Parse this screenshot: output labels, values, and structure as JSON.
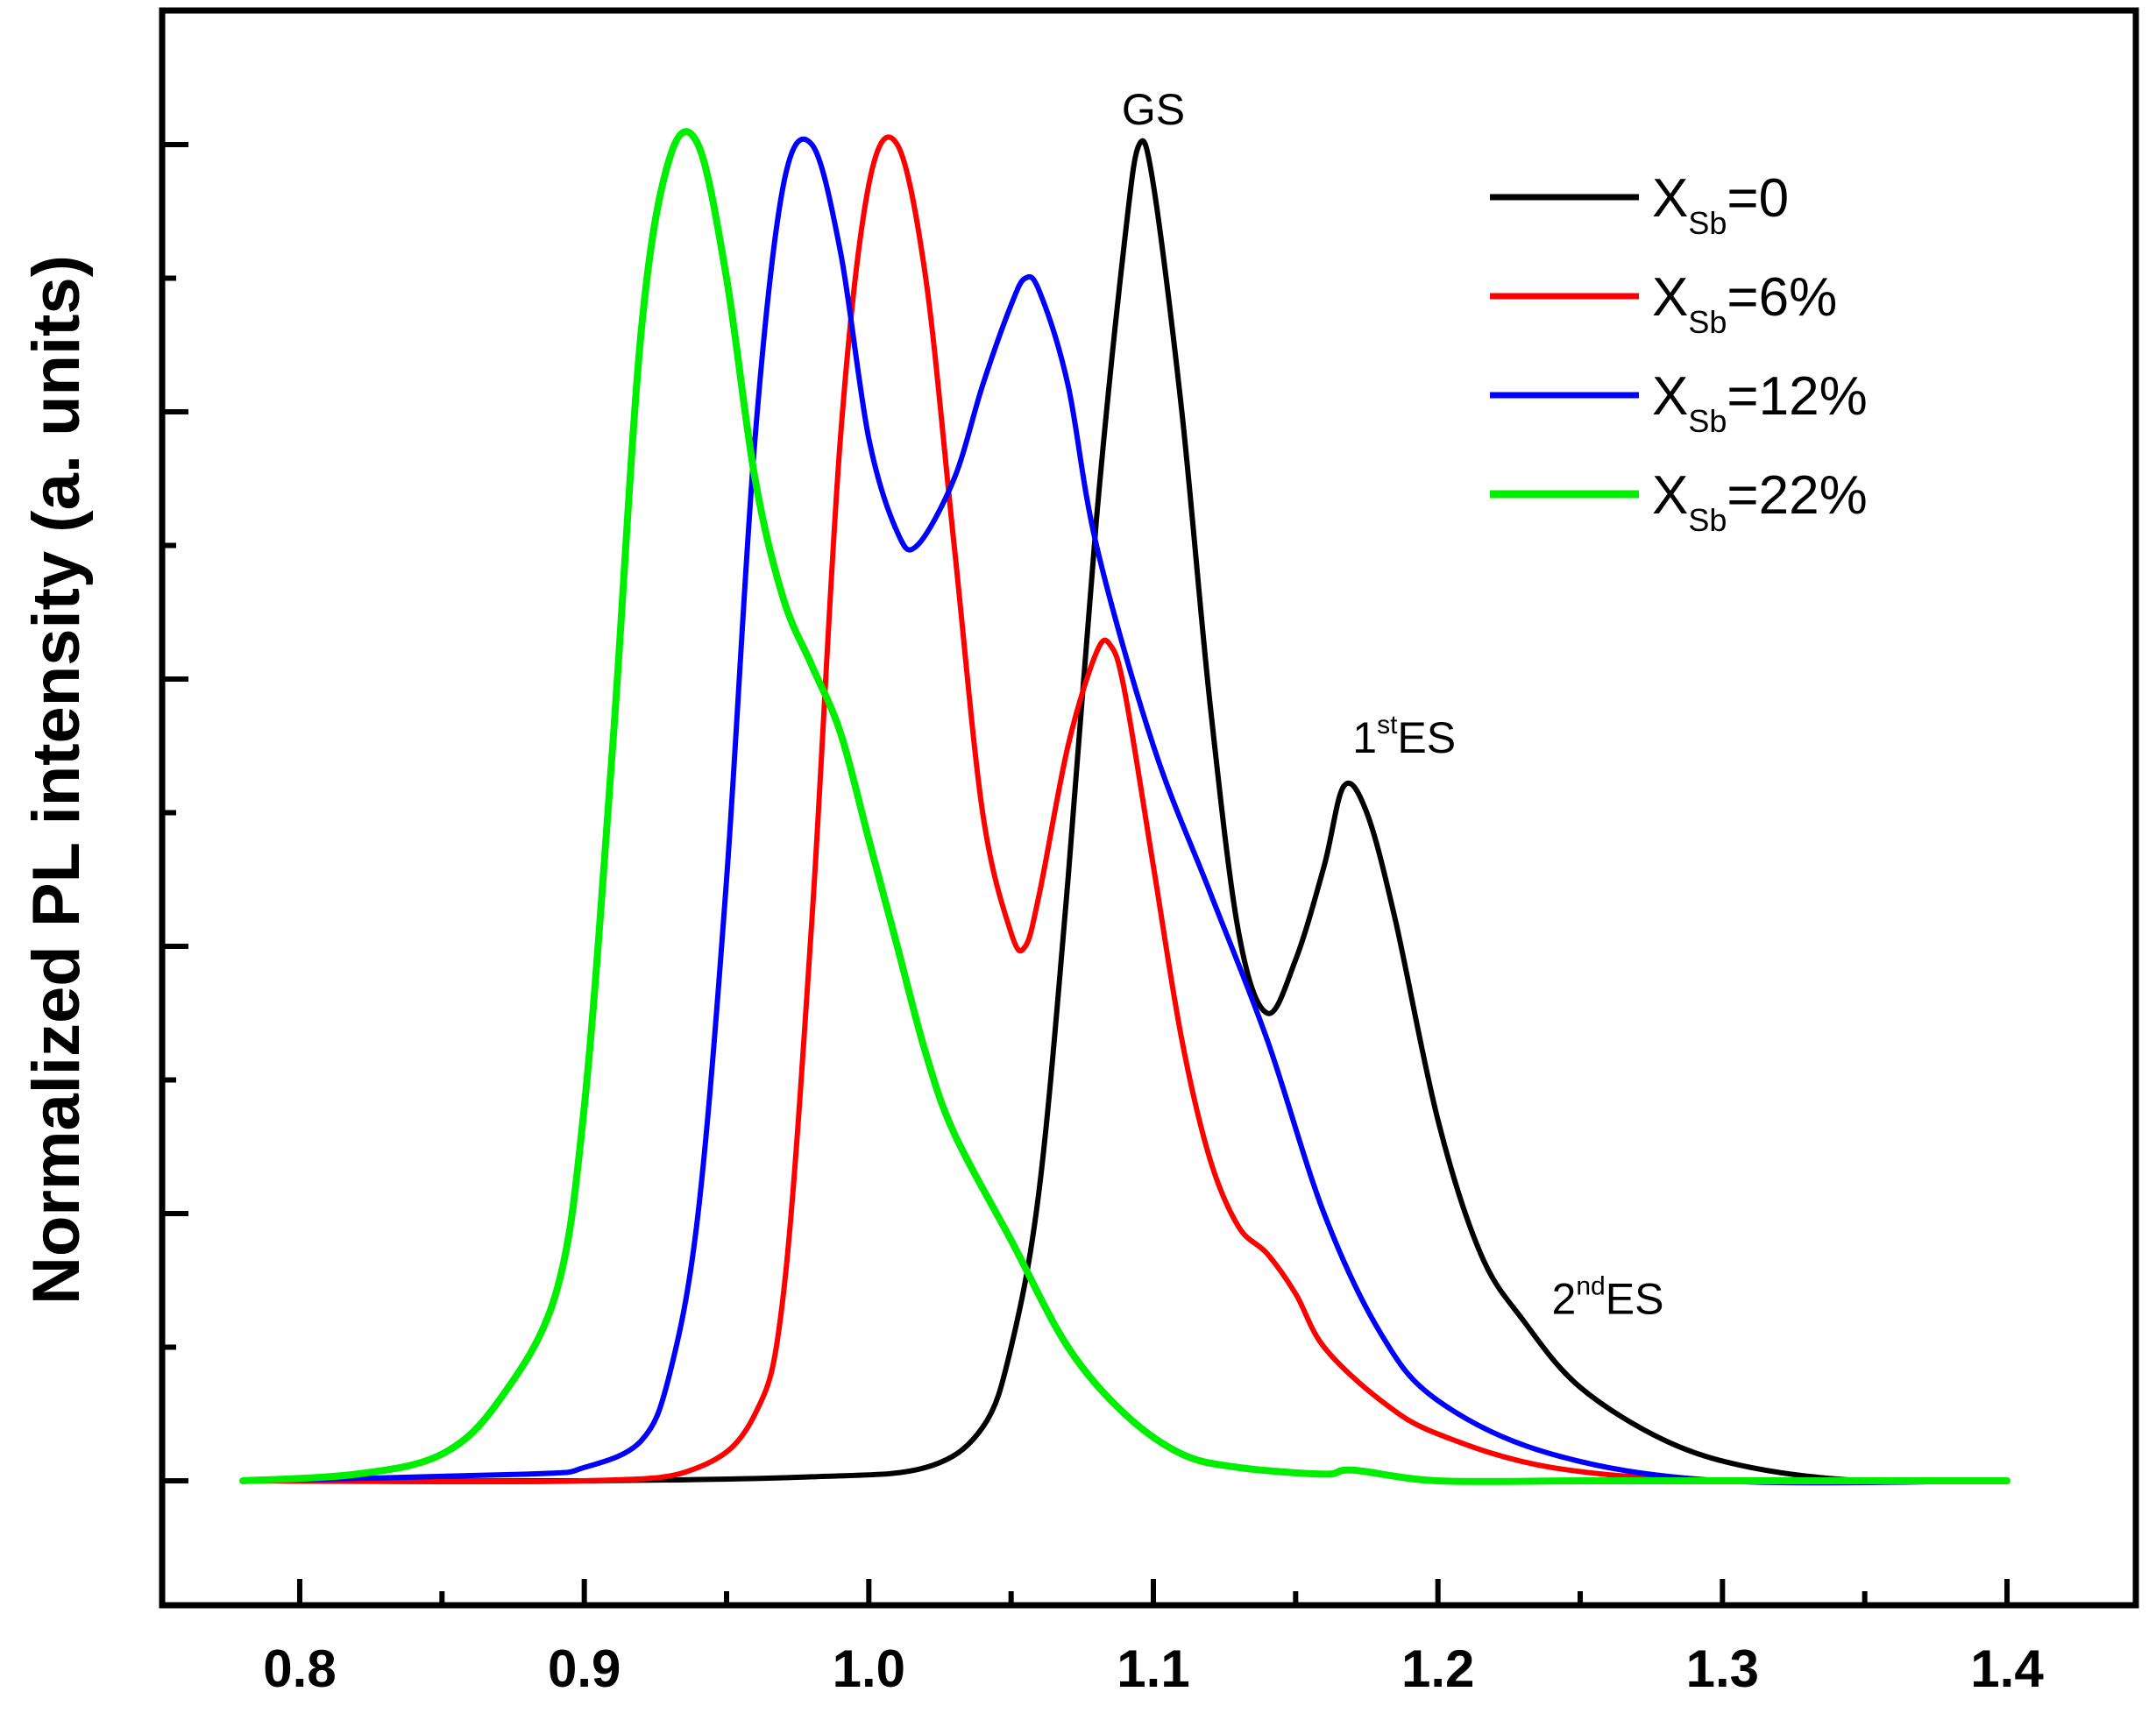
{
  "chart_data": {
    "type": "line",
    "title": "",
    "xlabel": "",
    "ylabel": "Normalized PL intensity (a. units)",
    "xlim": [
      0.75,
      1.45
    ],
    "ylim": [
      -0.05,
      1.1
    ],
    "x_ticks": [
      0.8,
      0.9,
      1.0,
      1.1,
      1.2,
      1.3,
      1.4
    ],
    "x_tick_labels": [
      "0.8",
      "0.9",
      "1.0",
      "1.1",
      "1.2",
      "1.3",
      "1.4"
    ],
    "y_ticks": [
      0.0,
      0.1,
      0.2,
      0.3,
      0.4,
      0.5,
      0.6,
      0.7,
      0.8,
      0.9,
      1.0
    ],
    "y_tick_labels_visible": false,
    "grid": false,
    "legend_position": "top-right",
    "series": [
      {
        "name": "X_Sb=0",
        "legend_main": "X",
        "legend_sub": "Sb",
        "legend_value": "=0",
        "color": "#000000",
        "x": [
          0.78,
          0.9,
          0.98,
          1.02,
          1.04,
          1.05,
          1.06,
          1.07,
          1.08,
          1.09,
          1.095,
          1.1,
          1.11,
          1.12,
          1.13,
          1.14,
          1.15,
          1.16,
          1.167,
          1.175,
          1.185,
          1.2,
          1.215,
          1.23,
          1.25,
          1.28,
          1.31,
          1.35,
          1.4
        ],
        "values": [
          0.0,
          0.0,
          0.003,
          0.01,
          0.04,
          0.1,
          0.22,
          0.45,
          0.72,
          0.93,
          1.0,
          0.97,
          0.8,
          0.58,
          0.41,
          0.35,
          0.39,
          0.46,
          0.52,
          0.5,
          0.42,
          0.27,
          0.17,
          0.12,
          0.07,
          0.03,
          0.01,
          0.0,
          0.0
        ]
      },
      {
        "name": "X_Sb=6%",
        "legend_main": "X",
        "legend_sub": "Sb",
        "legend_value": "=6%",
        "color": "#ff0000",
        "x": [
          0.78,
          0.9,
          0.94,
          0.96,
          0.97,
          0.98,
          0.99,
          1.0,
          1.01,
          1.02,
          1.03,
          1.04,
          1.05,
          1.055,
          1.06,
          1.07,
          1.08,
          1.085,
          1.09,
          1.1,
          1.11,
          1.12,
          1.13,
          1.14,
          1.15,
          1.16,
          1.18,
          1.2,
          1.24,
          1.3,
          1.4
        ],
        "values": [
          0.0,
          0.0,
          0.01,
          0.05,
          0.14,
          0.42,
          0.78,
          0.97,
          1.0,
          0.9,
          0.7,
          0.5,
          0.41,
          0.4,
          0.44,
          0.55,
          0.62,
          0.625,
          0.59,
          0.46,
          0.33,
          0.24,
          0.19,
          0.17,
          0.14,
          0.1,
          0.06,
          0.035,
          0.01,
          0.0,
          0.0
        ]
      },
      {
        "name": "X_Sb=12%",
        "legend_main": "X",
        "legend_sub": "Sb",
        "legend_value": "=12%",
        "color": "#0000ff",
        "x": [
          0.78,
          0.88,
          0.9,
          0.92,
          0.93,
          0.94,
          0.95,
          0.96,
          0.97,
          0.98,
          0.99,
          1.0,
          1.01,
          1.017,
          1.03,
          1.04,
          1.05,
          1.055,
          1.06,
          1.07,
          1.08,
          1.1,
          1.12,
          1.14,
          1.16,
          1.18,
          1.2,
          1.24,
          1.3,
          1.4
        ],
        "values": [
          0.0,
          0.005,
          0.01,
          0.03,
          0.08,
          0.2,
          0.45,
          0.78,
          0.97,
          1.0,
          0.92,
          0.78,
          0.71,
          0.7,
          0.75,
          0.82,
          0.88,
          0.9,
          0.89,
          0.82,
          0.7,
          0.55,
          0.44,
          0.33,
          0.2,
          0.11,
          0.06,
          0.02,
          0.0,
          0.0
        ]
      },
      {
        "name": "X_Sb=22%",
        "legend_main": "X",
        "legend_sub": "Sb",
        "legend_value": "=22%",
        "color": "#00ee00",
        "x": [
          0.78,
          0.82,
          0.85,
          0.87,
          0.89,
          0.9,
          0.91,
          0.92,
          0.93,
          0.94,
          0.95,
          0.96,
          0.97,
          0.98,
          0.99,
          1.0,
          1.01,
          1.02,
          1.03,
          1.05,
          1.07,
          1.09,
          1.11,
          1.13,
          1.16,
          1.17,
          1.2,
          1.25,
          1.3,
          1.4
        ],
        "values": [
          0.0,
          0.005,
          0.02,
          0.06,
          0.14,
          0.28,
          0.55,
          0.86,
          0.99,
          1.0,
          0.9,
          0.75,
          0.66,
          0.61,
          0.56,
          0.48,
          0.4,
          0.32,
          0.26,
          0.18,
          0.1,
          0.05,
          0.02,
          0.01,
          0.005,
          0.008,
          0.0,
          0.0,
          0.0,
          0.0
        ]
      }
    ],
    "annotations": [
      {
        "name": "gs",
        "text": "GS",
        "x": 1.1,
        "y": 1.015
      },
      {
        "name": "first-es",
        "prefix": "1",
        "sup": "st",
        "suffix": "ES",
        "x": 1.17,
        "y": 0.545
      },
      {
        "name": "second-es",
        "prefix": "2",
        "sup": "nd",
        "suffix": "ES",
        "x": 1.24,
        "y": 0.125
      }
    ]
  }
}
